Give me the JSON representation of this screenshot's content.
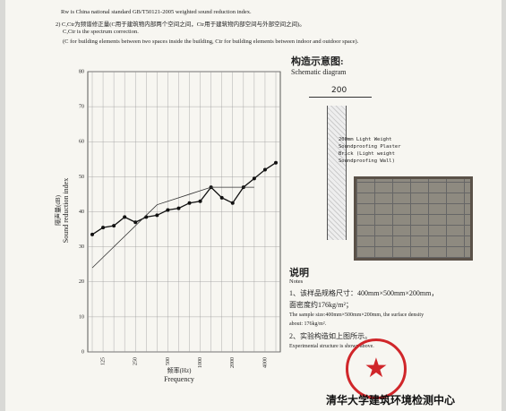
{
  "header": {
    "lines": [
      "Rw is China national standard GB/T50121-2005 weighted sound reduction index.",
      "2) C,Ctr为频谱修正量(C用于建筑物内部两个空间之间，Ctr用于建筑物内部空间与外部空间之间)。",
      "C,Ctr is the spectrum correction.",
      "(C for building elements between two spaces inside the building, Ctr for building elements between indoor and outdoor space)."
    ]
  },
  "chart_data": {
    "type": "line",
    "y_label_cn": "隔声量(dB)",
    "y_label": "Sound reduction index",
    "x_label_cn": "频率(Hz)",
    "x_label": "Frequency",
    "categories": [
      null,
      "125",
      null,
      null,
      "250",
      null,
      null,
      "500",
      null,
      null,
      "1000",
      null,
      null,
      "2000",
      null,
      null,
      "4000",
      null
    ],
    "series": [
      {
        "color": "#111",
        "values": [
          33.5,
          35.5,
          36,
          38.5,
          37,
          38.5,
          39,
          40.5,
          41,
          42.5,
          43,
          47,
          44,
          42.5,
          47,
          49.5,
          52,
          54
        ]
      },
      {
        "color": "#333",
        "values": [
          24,
          27,
          30,
          33,
          36,
          39,
          42,
          43,
          44,
          45,
          46,
          47,
          47,
          47,
          47,
          47,
          null,
          null
        ]
      }
    ],
    "ylim": [
      0,
      80
    ],
    "yticks": [
      0,
      10,
      20,
      30,
      40,
      50,
      60,
      70,
      80
    ],
    "grid": true
  },
  "schematic": {
    "title": "构造示意图:",
    "subtitle": "Schematic diagram",
    "dimension": "200",
    "description": [
      "200mm Light Weight",
      "Soundproofing Plaster",
      "Brick (Light weight",
      "Soundproofing Wall)"
    ]
  },
  "notes": {
    "title": "说明",
    "subtitle": "Notes",
    "items": [
      "1、该样品规格尺寸：400mm×500mm×200mm，",
      "面密度约176kg/m²；",
      "The sample size:400mm×500mm×200mm, the surface density",
      "about: 176kg/m².",
      "2、实验构造如上图所示。",
      "Experimental structure is shown above."
    ]
  },
  "footer": {
    "org": "清华大学建筑环境检测中心"
  }
}
